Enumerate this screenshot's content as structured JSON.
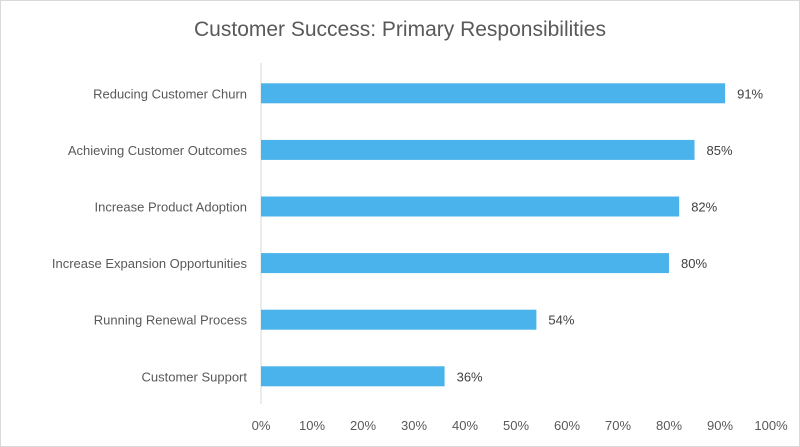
{
  "chart_data": {
    "type": "bar",
    "orientation": "horizontal",
    "title": "Customer Success: Primary Responsibilities",
    "categories": [
      "Reducing Customer Churn",
      "Achieving Customer Outcomes",
      "Increase Product Adoption",
      "Increase Expansion Opportunities",
      "Running Renewal Process",
      "Customer Support"
    ],
    "values": [
      91,
      85,
      82,
      80,
      54,
      36
    ],
    "data_labels": [
      "91%",
      "85%",
      "82%",
      "80%",
      "54%",
      "36%"
    ],
    "xlim": [
      0,
      100
    ],
    "x_ticks": [
      "0%",
      "10%",
      "20%",
      "30%",
      "40%",
      "50%",
      "60%",
      "70%",
      "80%",
      "90%",
      "100%"
    ],
    "grid": false,
    "legend": "none",
    "bar_color": "#4AB3EB",
    "text_color": "#595959"
  }
}
